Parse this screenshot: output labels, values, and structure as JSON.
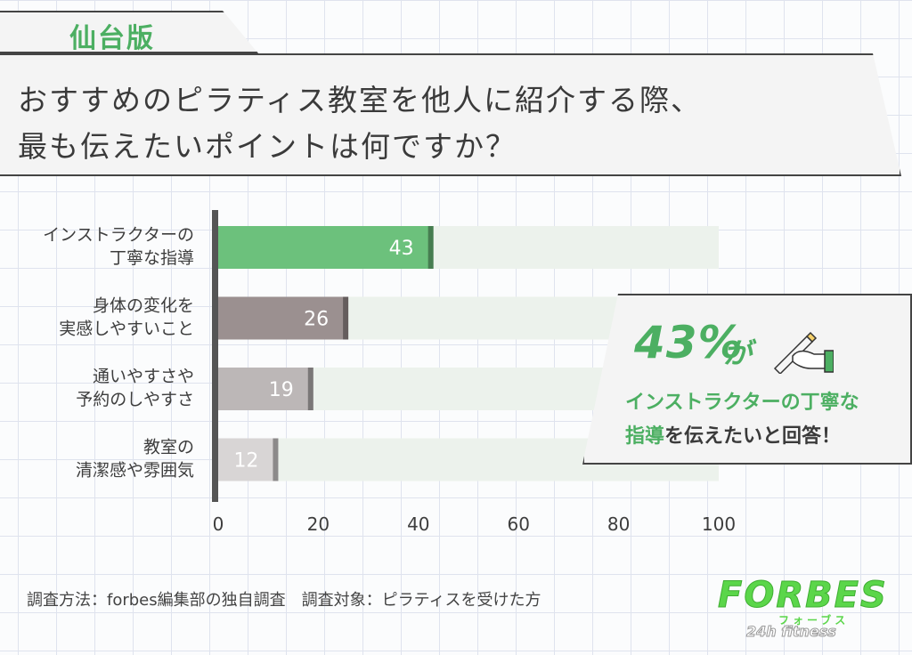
{
  "header": {
    "region_tag": "仙台版",
    "title_line1": "おすすめのピラティス教室を他人に紹介する際、",
    "title_line2": "最も伝えたいポイントは何ですか？"
  },
  "chart_data": {
    "type": "bar",
    "orientation": "horizontal",
    "categories": [
      [
        "インストラクターの",
        "丁寧な指導"
      ],
      [
        "身体の変化を",
        "実感しやすいこと"
      ],
      [
        "通いやすさや",
        "予約のしやすさ"
      ],
      [
        "教室の",
        "清潔感や雰囲気"
      ]
    ],
    "values": [
      43,
      26,
      19,
      12
    ],
    "value_labels": [
      "43",
      "26",
      "19",
      "12"
    ],
    "xlim": [
      0,
      100
    ],
    "ticks": [
      "0",
      "20",
      "40",
      "60",
      "80",
      "100"
    ],
    "grid": false,
    "colors": [
      "#6cc17c",
      "#9b9090",
      "#bcb7b7",
      "#d8d5d5"
    ],
    "track_color": "#ecf2ec"
  },
  "callout": {
    "percent": "43%",
    "particle": "が",
    "line1": "インストラクターの丁寧な",
    "line2_highlight": "指導",
    "line2_rest": "を伝えたいと回答！"
  },
  "footer": {
    "note": "調査方法：forbes編集部の独自調査　調査対象：ピラティスを受けた方"
  },
  "logo": {
    "name": "FORBES",
    "sub": "フォーブス",
    "tagline": "24h fitness"
  }
}
